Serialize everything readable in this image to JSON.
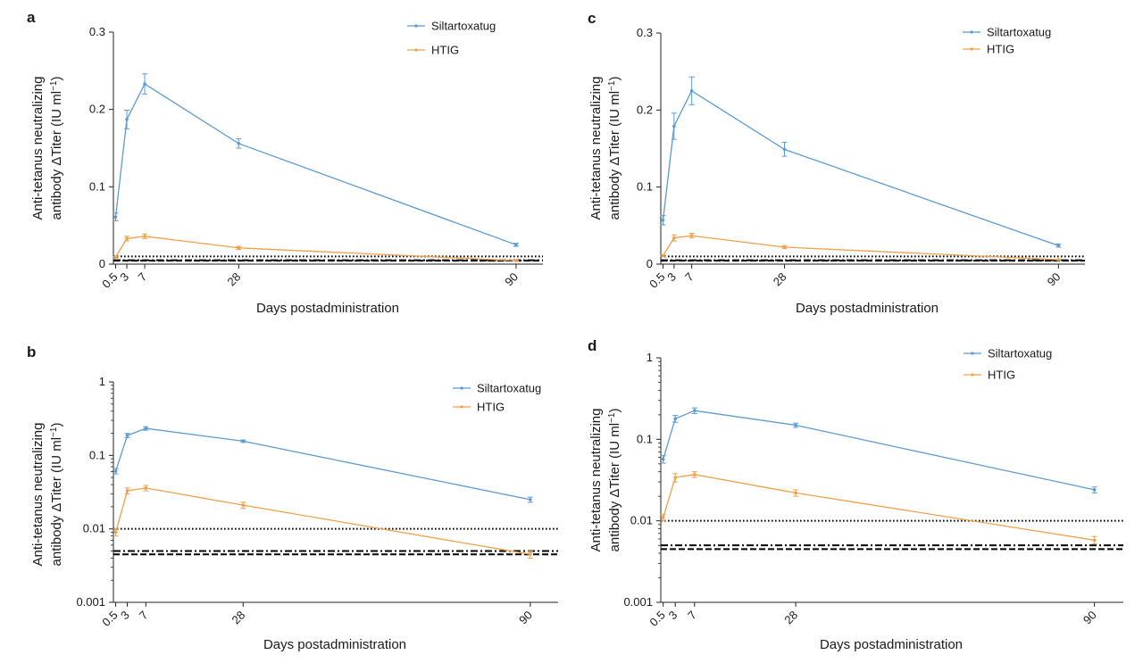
{
  "colors": {
    "series_1": "#5b9bd5",
    "series_2": "#f0a04b",
    "axis": "#222222",
    "reference_line": "#000000",
    "text": "#1a1a1a"
  },
  "chart_data": [
    {
      "panel_label": "a",
      "type": "line",
      "yscale": "linear",
      "ylim": [
        0,
        0.3
      ],
      "xlim": [
        0,
        96
      ],
      "x": [
        0.5,
        3,
        7,
        28,
        90
      ],
      "x_tick_labels": [
        "0.5",
        "3",
        "7",
        "28",
        "90"
      ],
      "y_ticks": [
        0,
        0.1,
        0.2,
        0.3
      ],
      "y_tick_labels": [
        "0",
        "0.1",
        "0.2",
        "0.3"
      ],
      "xlabel": "Days postadministration",
      "ylabel_line1": "Anti-tetanus neutralizing",
      "ylabel_line2": "antibody ΔTiter (IU ml",
      "ylabel_sup": "−1",
      "ylabel_end": ")",
      "series": [
        {
          "name": "Siltartoxatug",
          "values": [
            0.061,
            0.187,
            0.233,
            0.156,
            0.025
          ],
          "errors": [
            0.005,
            0.012,
            0.013,
            0.006,
            0.002
          ]
        },
        {
          "name": "HTIG",
          "values": [
            0.009,
            0.033,
            0.036,
            0.021,
            0.0045
          ],
          "errors": [
            0.001,
            0.003,
            0.003,
            0.002,
            0.0005
          ]
        }
      ],
      "reference_lines": [
        {
          "y": 0.01,
          "style": "dotted"
        },
        {
          "y": 0.005,
          "style": "dashdot"
        },
        {
          "y": 0.0045,
          "style": "dashed"
        }
      ]
    },
    {
      "panel_label": "b",
      "type": "line",
      "yscale": "log",
      "ylim": [
        0.001,
        1
      ],
      "xlim": [
        0,
        96
      ],
      "x": [
        0.5,
        3,
        7,
        28,
        90
      ],
      "x_tick_labels": [
        "0.5",
        "3",
        "7",
        "28",
        "90"
      ],
      "y_ticks": [
        0.001,
        0.01,
        0.1,
        1
      ],
      "y_tick_labels": [
        "0.001",
        "0.01",
        "0.1",
        "1"
      ],
      "xlabel": "Days postadministration",
      "ylabel_line1": "Anti-tetanus neutralizing",
      "ylabel_line2": "antibody ΔTiter (IU ml",
      "ylabel_sup": "−1",
      "ylabel_end": ")",
      "series": [
        {
          "name": "Siltartoxatug",
          "values": [
            0.061,
            0.187,
            0.233,
            0.156,
            0.025
          ],
          "errors": [
            0.005,
            0.012,
            0.013,
            0.006,
            0.002
          ]
        },
        {
          "name": "HTIG",
          "values": [
            0.009,
            0.033,
            0.036,
            0.021,
            0.0045
          ],
          "errors": [
            0.001,
            0.003,
            0.003,
            0.002,
            0.0005
          ]
        }
      ],
      "reference_lines": [
        {
          "y": 0.01,
          "style": "dotted"
        },
        {
          "y": 0.005,
          "style": "dashdot"
        },
        {
          "y": 0.0045,
          "style": "dashed"
        }
      ]
    },
    {
      "panel_label": "c",
      "type": "line",
      "yscale": "linear",
      "ylim": [
        0,
        0.3
      ],
      "xlim": [
        0,
        96
      ],
      "x": [
        0.5,
        3,
        7,
        28,
        90
      ],
      "x_tick_labels": [
        "0.5",
        "3",
        "7",
        "28",
        "90"
      ],
      "y_ticks": [
        0,
        0.1,
        0.2,
        0.3
      ],
      "y_tick_labels": [
        "0",
        "0.1",
        "0.2",
        "0.3"
      ],
      "xlabel": "Days postadministration",
      "ylabel_line1": "Anti-tetanus neutralizing",
      "ylabel_line2": "antibody ΔTiter (IU ml",
      "ylabel_sup": "−1",
      "ylabel_end": ")",
      "series": [
        {
          "name": "Siltartoxatug",
          "values": [
            0.057,
            0.179,
            0.225,
            0.149,
            0.024
          ],
          "errors": [
            0.006,
            0.017,
            0.018,
            0.009,
            0.002
          ]
        },
        {
          "name": "HTIG",
          "values": [
            0.011,
            0.034,
            0.037,
            0.022,
            0.0058
          ],
          "errors": [
            0.001,
            0.004,
            0.003,
            0.002,
            0.0006
          ]
        }
      ],
      "reference_lines": [
        {
          "y": 0.01,
          "style": "dotted"
        },
        {
          "y": 0.005,
          "style": "dashdot"
        },
        {
          "y": 0.0045,
          "style": "dashed"
        }
      ]
    },
    {
      "panel_label": "d",
      "type": "line",
      "yscale": "log",
      "ylim": [
        0.001,
        1
      ],
      "xlim": [
        0,
        96
      ],
      "x": [
        0.5,
        3,
        7,
        28,
        90
      ],
      "x_tick_labels": [
        "0.5",
        "3",
        "7",
        "28",
        "90"
      ],
      "y_ticks": [
        0.001,
        0.01,
        0.1,
        1
      ],
      "y_tick_labels": [
        "0.001",
        "0.01",
        "0.1",
        "1"
      ],
      "xlabel": "Days postadministration",
      "ylabel_line1": "Anti-tetanus neutralizing",
      "ylabel_line2": "antibody ΔTiter (IU ml",
      "ylabel_sup": "−1",
      "ylabel_end": ")",
      "series": [
        {
          "name": "Siltartoxatug",
          "values": [
            0.057,
            0.179,
            0.225,
            0.149,
            0.024
          ],
          "errors": [
            0.006,
            0.017,
            0.018,
            0.009,
            0.002
          ]
        },
        {
          "name": "HTIG",
          "values": [
            0.011,
            0.034,
            0.037,
            0.022,
            0.0058
          ],
          "errors": [
            0.001,
            0.004,
            0.003,
            0.002,
            0.0006
          ]
        }
      ],
      "reference_lines": [
        {
          "y": 0.01,
          "style": "dotted"
        },
        {
          "y": 0.005,
          "style": "dashdot"
        },
        {
          "y": 0.0045,
          "style": "dashed"
        }
      ]
    }
  ]
}
